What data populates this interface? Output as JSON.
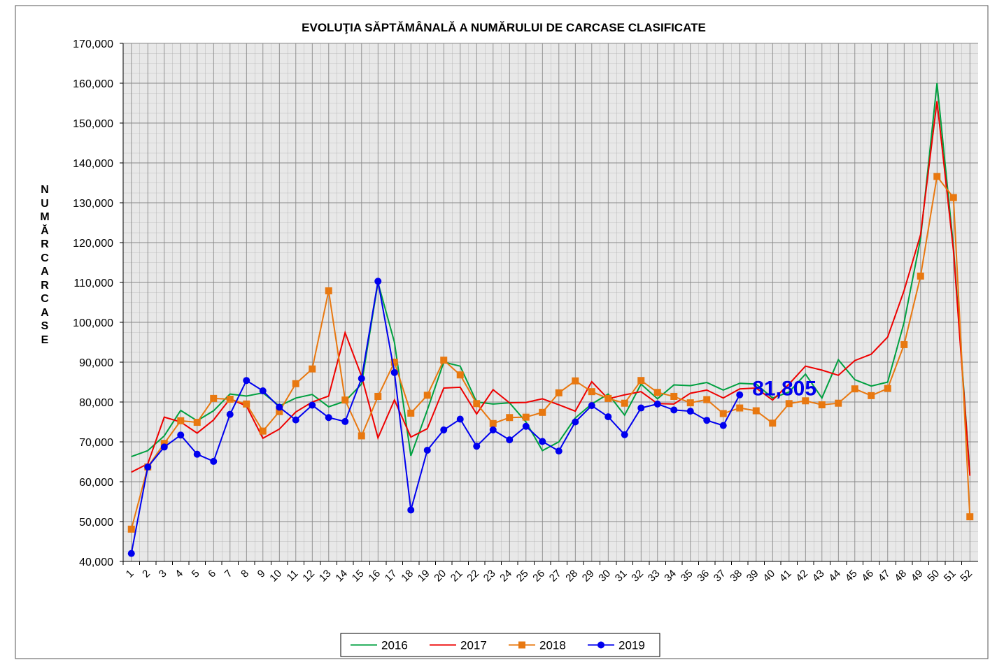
{
  "chart_data": {
    "type": "line",
    "title": "EVOLUŢIA SĂPTĂMÂNALĂ A NUMĂRULUI DE CARCASE  CLASIFICATE",
    "y_label": "NUMĂR CARCASE",
    "annotation": "81,805",
    "categories": [
      "1",
      "2",
      "3",
      "4",
      "5",
      "6",
      "7",
      "8",
      "9",
      "10",
      "11",
      "12",
      "13",
      "14",
      "15",
      "16",
      "17",
      "18",
      "19",
      "20",
      "21",
      "22",
      "23",
      "24",
      "25",
      "26",
      "27",
      "28",
      "29",
      "30",
      "31",
      "32",
      "33",
      "34",
      "35",
      "36",
      "37",
      "38",
      "39",
      "40",
      "41",
      "42",
      "43",
      "44",
      "45",
      "46",
      "47",
      "48",
      "49",
      "50",
      "51",
      "52"
    ],
    "ylim": [
      40000,
      170000
    ],
    "yticks": [
      {
        "value": 40000,
        "label": "40,000"
      },
      {
        "value": 50000,
        "label": "50,000"
      },
      {
        "value": 60000,
        "label": "60,000"
      },
      {
        "value": 70000,
        "label": "70,000"
      },
      {
        "value": 80000,
        "label": "80,000"
      },
      {
        "value": 90000,
        "label": "90,000"
      },
      {
        "value": 100000,
        "label": "100,000"
      },
      {
        "value": 110000,
        "label": "110,000"
      },
      {
        "value": 120000,
        "label": "120,000"
      },
      {
        "value": 130000,
        "label": "130,000"
      },
      {
        "value": 140000,
        "label": "140,000"
      },
      {
        "value": 150000,
        "label": "150,000"
      },
      {
        "value": 160000,
        "label": "160,000"
      },
      {
        "value": 170000,
        "label": "170,000"
      }
    ],
    "grid": true,
    "legend": "bottom",
    "series": [
      {
        "name": "2016",
        "color": "#00a040",
        "marker": "none",
        "values": [
          66300,
          67800,
          71500,
          77900,
          75300,
          77800,
          82000,
          81500,
          82300,
          79000,
          81000,
          81900,
          78800,
          80200,
          84500,
          110000,
          95000,
          66500,
          78000,
          90000,
          89000,
          80000,
          79500,
          79800,
          75000,
          67800,
          70000,
          76000,
          79500,
          82000,
          76700,
          84500,
          80800,
          84300,
          84100,
          84900,
          83000,
          84700,
          84500,
          81000,
          82500,
          87000,
          81000,
          90600,
          85600,
          84000,
          85000,
          100000,
          121000,
          160000,
          119000,
          62000
        ]
      },
      {
        "name": "2017",
        "color": "#ee0000",
        "marker": "none",
        "values": [
          62400,
          64500,
          76200,
          75000,
          72200,
          75500,
          80800,
          79000,
          70900,
          73200,
          77500,
          80000,
          81500,
          97400,
          86500,
          71000,
          80500,
          71200,
          73300,
          83500,
          83700,
          77000,
          83100,
          79800,
          79900,
          80800,
          79300,
          77700,
          85100,
          80800,
          81800,
          82600,
          79600,
          79500,
          82200,
          83000,
          81000,
          83300,
          83500,
          80500,
          84500,
          89000,
          88000,
          86700,
          90400,
          92000,
          96300,
          108000,
          122000,
          155500,
          118000,
          61500
        ]
      },
      {
        "name": "2018",
        "color": "#e87810",
        "marker": "square",
        "values": [
          48100,
          63700,
          69600,
          75300,
          74900,
          80900,
          80700,
          79500,
          72700,
          77600,
          84600,
          88300,
          107900,
          80500,
          71500,
          81400,
          90000,
          77200,
          81700,
          90500,
          86800,
          79600,
          74600,
          76100,
          76200,
          77400,
          82300,
          85300,
          82600,
          80900,
          79700,
          85400,
          82400,
          81400,
          79800,
          80600,
          77100,
          78500,
          77800,
          74700,
          79600,
          80300,
          79300,
          79700,
          83300,
          81600,
          83400,
          94400,
          111600,
          136600,
          131300,
          51200
        ]
      },
      {
        "name": "2019",
        "color": "#0000ee",
        "marker": "circle",
        "values": [
          42000,
          63700,
          68700,
          71700,
          66900,
          65100,
          76900,
          85400,
          82800,
          78700,
          75500,
          79200,
          76100,
          75100,
          85900,
          110300,
          87400,
          52900,
          67900,
          73000,
          75700,
          68900,
          73000,
          70500,
          73900,
          70100,
          67700,
          75000,
          79100,
          76300,
          71800,
          78500,
          79500,
          78000,
          77700,
          75400,
          74100,
          81805,
          null,
          null,
          null,
          null,
          null,
          null,
          null,
          null,
          null,
          null,
          null,
          null,
          null,
          null
        ]
      }
    ]
  }
}
